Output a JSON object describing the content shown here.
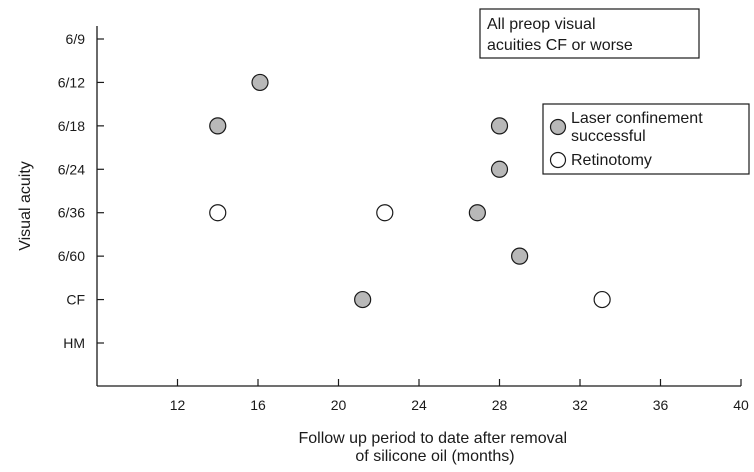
{
  "chart_data": {
    "type": "scatter",
    "xlabel": [
      "Follow up period to date after removal",
      "of silicone oil (months)"
    ],
    "ylabel": "Visual acuity",
    "x_ticks": [
      12,
      16,
      20,
      24,
      28,
      32,
      36,
      40
    ],
    "xlim": [
      8,
      40
    ],
    "y_categories": [
      "HM",
      "CF",
      "6/60",
      "6/36",
      "6/24",
      "6/18",
      "6/12",
      "6/9"
    ],
    "annotation": [
      "All preop visual",
      "acuities CF or worse"
    ],
    "legend_position": "right",
    "series": [
      {
        "name": [
          "Laser confinement",
          "successful"
        ],
        "marker": "filled-circle",
        "color": "#b8b8b8",
        "points": [
          {
            "x": 14,
            "y": "6/18"
          },
          {
            "x": 16.1,
            "y": "6/12"
          },
          {
            "x": 21.2,
            "y": "CF"
          },
          {
            "x": 26.9,
            "y": "6/36"
          },
          {
            "x": 28,
            "y": "6/18"
          },
          {
            "x": 28,
            "y": "6/24"
          },
          {
            "x": 29,
            "y": "6/60"
          }
        ]
      },
      {
        "name": "Retinotomy",
        "marker": "open-circle",
        "color": "#ffffff",
        "points": [
          {
            "x": 14,
            "y": "6/36"
          },
          {
            "x": 22.3,
            "y": "6/36"
          },
          {
            "x": 33.1,
            "y": "CF"
          }
        ]
      }
    ]
  }
}
